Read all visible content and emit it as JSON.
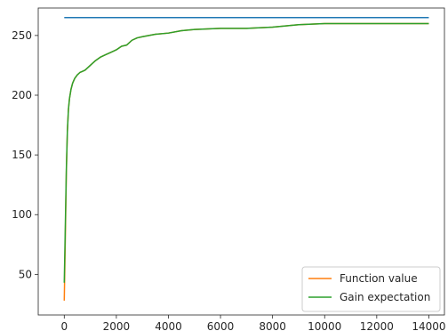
{
  "chart_data": {
    "type": "line",
    "title": "",
    "xlabel": "",
    "ylabel": "",
    "xlim": [
      -1000,
      14600
    ],
    "ylim": [
      16,
      273
    ],
    "x_ticks": [
      0,
      2000,
      4000,
      6000,
      8000,
      10000,
      12000,
      14000
    ],
    "y_ticks": [
      50,
      100,
      150,
      200,
      250
    ],
    "grid": false,
    "legend_position": "bottom-right",
    "series": [
      {
        "color": "#1f77b4",
        "x": [
          0,
          14000
        ],
        "y": [
          265,
          265
        ]
      },
      {
        "name": "Function value",
        "color": "#ff7f0e",
        "x": [
          0,
          40,
          80,
          120,
          160,
          200,
          260,
          320,
          400,
          500,
          600,
          700,
          800,
          1000,
          1200,
          1400,
          1600,
          1800,
          2000,
          2200,
          2400,
          2600,
          2800,
          3000,
          3500,
          4000,
          4500,
          5000,
          6000,
          7000,
          8000,
          8500,
          9000,
          10000,
          11000,
          12000,
          13000,
          14000
        ],
        "y": [
          28,
          80,
          135,
          170,
          188,
          197,
          205,
          210,
          214,
          217,
          219,
          220,
          221,
          225,
          229,
          232,
          234,
          236,
          238,
          241,
          242,
          246,
          248,
          249,
          251,
          252,
          254,
          255,
          256,
          256,
          257,
          258,
          259,
          260,
          260,
          260,
          260,
          260
        ]
      },
      {
        "name": "Gain expectation",
        "color": "#2ca02c",
        "x": [
          0,
          40,
          80,
          120,
          160,
          200,
          260,
          320,
          400,
          500,
          600,
          700,
          800,
          1000,
          1200,
          1400,
          1600,
          1800,
          2000,
          2200,
          2400,
          2600,
          2800,
          3000,
          3500,
          4000,
          4500,
          5000,
          6000,
          7000,
          8000,
          8500,
          9000,
          10000,
          11000,
          12000,
          13000,
          14000
        ],
        "y": [
          43,
          90,
          138,
          170,
          188,
          197,
          205,
          210,
          214,
          217,
          219,
          220,
          221,
          225,
          229,
          232,
          234,
          236,
          238,
          241,
          242,
          246,
          248,
          249,
          251,
          252,
          254,
          255,
          256,
          256,
          257,
          258,
          259,
          260,
          260,
          260,
          260,
          260
        ]
      }
    ]
  }
}
